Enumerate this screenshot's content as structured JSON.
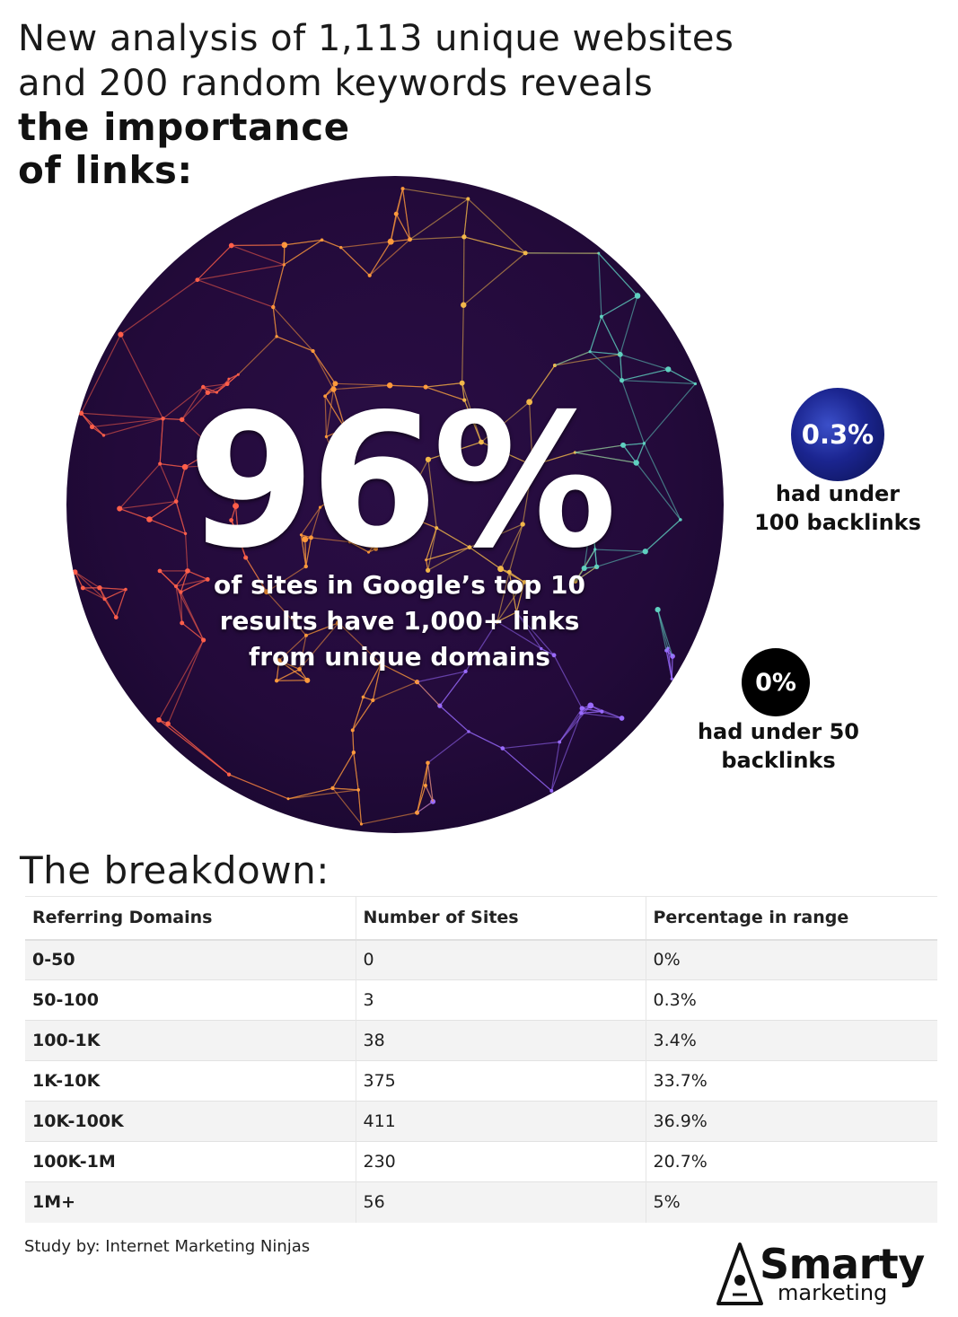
{
  "headline": {
    "line1": "New analysis of 1,113 unique websites",
    "line2": "and 200 random keywords reveals",
    "line3": "the importance",
    "line4": "of links:"
  },
  "hero": {
    "big_stat": "96%",
    "caption_line1": "of sites in Google’s top 10",
    "caption_line2": "results have 1,000+ links",
    "caption_line3": "from unique domains"
  },
  "stat_a": {
    "value": "0.3%",
    "caption_line1": "had under",
    "caption_line2": "100 backlinks"
  },
  "stat_b": {
    "value": "0%",
    "caption_line1": "had under 50",
    "caption_line2": "backlinks"
  },
  "breakdown_title": "The breakdown:",
  "chart_data": {
    "type": "table",
    "columns": [
      "Referring Domains",
      "Number of Sites",
      "Percentage in range"
    ],
    "rows": [
      [
        "0-50",
        "0",
        "0%"
      ],
      [
        "50-100",
        "3",
        "0.3%"
      ],
      [
        "100-1K",
        "38",
        "3.4%"
      ],
      [
        "1K-10K",
        "375",
        "33.7%"
      ],
      [
        "10K-100K",
        "411",
        "36.9%"
      ],
      [
        "100K-1M",
        "230",
        "20.7%"
      ],
      [
        "1M+",
        "56",
        "5%"
      ]
    ]
  },
  "footnote": "Study by: Internet Marketing Ninjas",
  "logo": {
    "word": "Smarty",
    "sub": "marketing"
  },
  "colors": {
    "hero_bg": "#2a0d45",
    "accent_orange": "#ff8a3d",
    "accent_blue": "#1b2590"
  }
}
